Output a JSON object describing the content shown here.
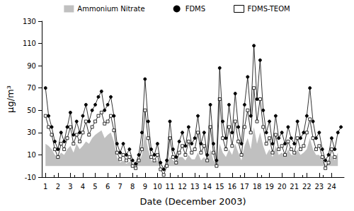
{
  "chart_data": {
    "type": "line",
    "x_label": "Date (December 2003)",
    "y_label": "µg/m³",
    "xlim": [
      0.7,
      25
    ],
    "xticks": [
      1,
      2,
      3,
      4,
      5,
      6,
      7,
      8,
      9,
      10,
      11,
      12,
      13,
      14,
      15,
      16,
      17,
      18,
      19,
      20,
      21,
      22,
      23,
      24
    ],
    "ylim": [
      -10,
      130
    ],
    "yticks": [
      -10,
      10,
      30,
      50,
      70,
      90,
      110,
      130
    ],
    "grid": false,
    "legend": "top",
    "x": [
      1,
      1.25,
      1.5,
      1.75,
      2,
      2.25,
      2.5,
      2.75,
      3,
      3.25,
      3.5,
      3.75,
      4,
      4.25,
      4.5,
      4.75,
      5,
      5.25,
      5.5,
      5.75,
      6,
      6.25,
      6.5,
      6.75,
      7,
      7.25,
      7.5,
      7.75,
      8,
      8.25,
      8.5,
      8.75,
      9,
      9.25,
      9.5,
      9.75,
      10,
      10.25,
      10.5,
      10.75,
      11,
      11.25,
      11.5,
      11.75,
      12,
      12.25,
      12.5,
      12.75,
      13,
      13.25,
      13.5,
      13.75,
      14,
      14.25,
      14.5,
      14.75,
      15,
      15.25,
      15.5,
      15.75,
      16,
      16.25,
      16.5,
      16.75,
      17,
      17.25,
      17.5,
      17.75,
      18,
      18.25,
      18.5,
      18.75,
      19,
      19.25,
      19.5,
      19.75,
      20,
      20.25,
      20.5,
      20.75,
      21,
      21.25,
      21.5,
      21.75,
      22,
      22.25,
      22.5,
      22.75,
      23,
      23.25,
      23.5,
      23.75,
      24,
      24.25,
      24.5,
      24.75
    ],
    "series": [
      {
        "name": "Ammonium Nitrate",
        "type": "area",
        "color": "#c0c0c0",
        "values": [
          20,
          18,
          15,
          10,
          8,
          12,
          10,
          15,
          18,
          12,
          20,
          15,
          18,
          22,
          20,
          25,
          28,
          30,
          32,
          25,
          28,
          30,
          22,
          8,
          3,
          5,
          2,
          4,
          2,
          1,
          3,
          10,
          30,
          15,
          5,
          3,
          5,
          1,
          0,
          2,
          8,
          5,
          3,
          8,
          8,
          5,
          10,
          6,
          6,
          12,
          5,
          8,
          3,
          15,
          5,
          2,
          20,
          12,
          8,
          15,
          10,
          20,
          12,
          5,
          18,
          25,
          15,
          35,
          20,
          30,
          18,
          10,
          15,
          8,
          18,
          10,
          12,
          8,
          15,
          10,
          10,
          15,
          10,
          12,
          15,
          25,
          15,
          10,
          10,
          5,
          1,
          3,
          10,
          5,
          12,
          null
        ]
      },
      {
        "name": "FDMS",
        "type": "line",
        "color": "#000000",
        "marker": "circle",
        "values": [
          70,
          45,
          35,
          22,
          15,
          30,
          22,
          35,
          48,
          28,
          40,
          30,
          45,
          55,
          40,
          50,
          55,
          62,
          67,
          50,
          55,
          62,
          45,
          20,
          12,
          20,
          10,
          15,
          5,
          2,
          10,
          30,
          78,
          40,
          15,
          10,
          20,
          3,
          -3,
          5,
          40,
          15,
          8,
          22,
          30,
          18,
          35,
          20,
          25,
          45,
          20,
          30,
          10,
          55,
          20,
          5,
          88,
          40,
          25,
          55,
          30,
          65,
          35,
          20,
          55,
          80,
          45,
          108,
          60,
          95,
          50,
          30,
          40,
          20,
          45,
          25,
          30,
          20,
          35,
          25,
          20,
          40,
          25,
          30,
          45,
          70,
          40,
          25,
          30,
          15,
          5,
          10,
          25,
          15,
          30,
          35
        ]
      },
      {
        "name": "FDMS-TEOM",
        "type": "line",
        "color": "#000000",
        "marker": "open-square",
        "values": [
          45,
          35,
          28,
          15,
          8,
          20,
          15,
          25,
          35,
          20,
          28,
          22,
          30,
          40,
          28,
          35,
          40,
          45,
          48,
          38,
          40,
          45,
          32,
          12,
          6,
          10,
          5,
          8,
          0,
          -2,
          5,
          15,
          50,
          25,
          8,
          5,
          10,
          -3,
          -8,
          0,
          25,
          8,
          3,
          12,
          18,
          10,
          22,
          12,
          15,
          30,
          12,
          18,
          5,
          35,
          12,
          0,
          60,
          25,
          15,
          35,
          18,
          40,
          22,
          10,
          35,
          50,
          30,
          70,
          40,
          60,
          35,
          20,
          25,
          12,
          28,
          15,
          18,
          10,
          22,
          15,
          12,
          25,
          15,
          18,
          30,
          42,
          25,
          15,
          18,
          8,
          -2,
          3,
          15,
          8,
          null,
          null
        ]
      }
    ]
  }
}
